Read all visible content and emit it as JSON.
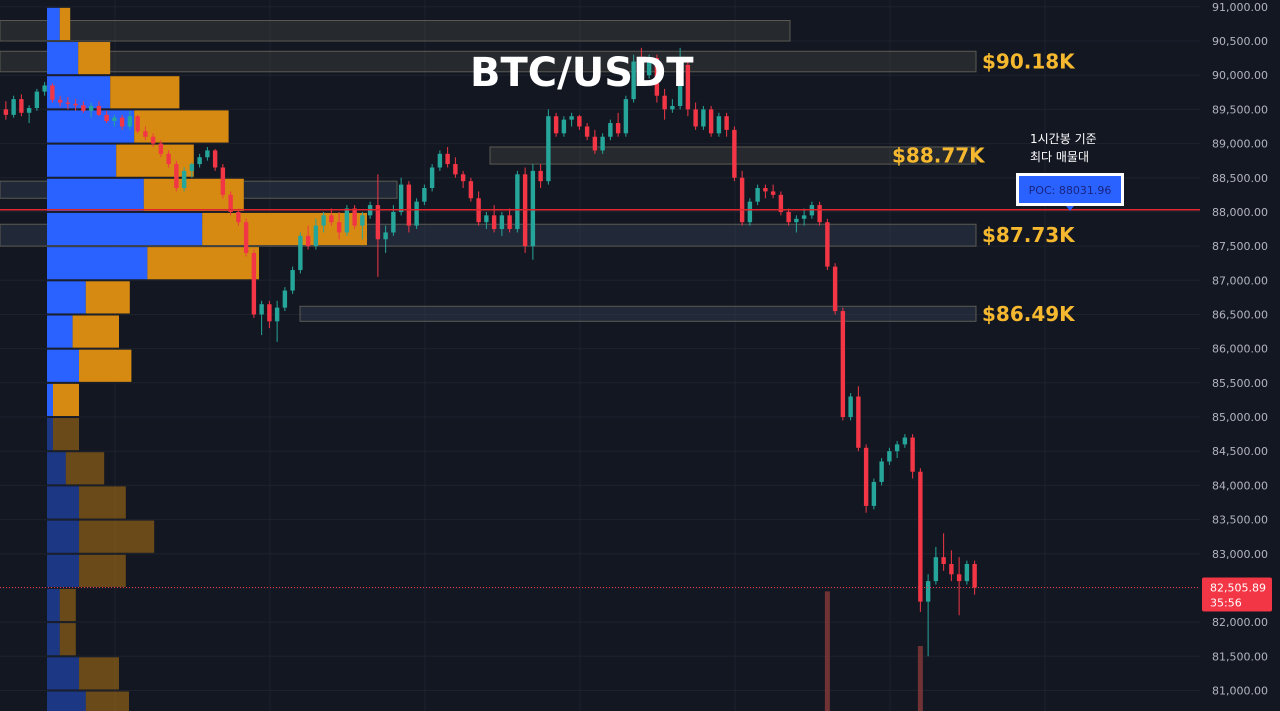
{
  "colors": {
    "background": "#131722",
    "grid": "#1e222d",
    "up": "#26a69a",
    "down": "#f23645",
    "vp_up": "#2962ff",
    "vp_down": "#d68a12",
    "zone_label": "#f5b82e",
    "poc_line": "#e0262e",
    "poc_box": "#2962ff",
    "price_tag": "#f23645"
  },
  "chart_data": {
    "type": "candlestick",
    "title": "BTC/USDT",
    "y_axis": {
      "min": 80700,
      "max": 91100,
      "ticks": [
        81000,
        81500,
        82000,
        82500,
        83000,
        83500,
        84000,
        84500,
        85000,
        85500,
        86000,
        86500,
        87000,
        87500,
        88000,
        88500,
        89000,
        89500,
        90000,
        90500,
        91000
      ],
      "tick_labels": [
        "81,000.00",
        "81,500.00",
        "82,000.00",
        "82,500.00",
        "83,000.00",
        "83,500.00",
        "84,000.00",
        "84,500.00",
        "85,000.00",
        "85,500.00",
        "86,000.00",
        "86,500.00",
        "87,000.00",
        "87,500.00",
        "88,000.00",
        "88,500.00",
        "89,000.00",
        "89,500.00",
        "90,000.00",
        "90,500.00",
        "91,000.00"
      ]
    },
    "grid": true,
    "candles": [
      [
        89500,
        89620,
        89350,
        89420
      ],
      [
        89420,
        89700,
        89380,
        89650
      ],
      [
        89650,
        89720,
        89400,
        89450
      ],
      [
        89450,
        89560,
        89300,
        89520
      ],
      [
        89520,
        89800,
        89480,
        89760
      ],
      [
        89760,
        89900,
        89700,
        89850
      ],
      [
        89850,
        89880,
        89600,
        89640
      ],
      [
        89640,
        89700,
        89540,
        89600
      ],
      [
        89600,
        89680,
        89500,
        89580
      ],
      [
        89580,
        89650,
        89480,
        89560
      ],
      [
        89560,
        89620,
        89450,
        89480
      ],
      [
        89480,
        89600,
        89380,
        89550
      ],
      [
        89550,
        89620,
        89400,
        89420
      ],
      [
        89420,
        89480,
        89300,
        89330
      ],
      [
        89330,
        89420,
        89250,
        89380
      ],
      [
        89380,
        89420,
        89200,
        89250
      ],
      [
        89250,
        89480,
        89200,
        89400
      ],
      [
        89400,
        89420,
        89150,
        89180
      ],
      [
        89180,
        89250,
        89050,
        89100
      ],
      [
        89100,
        89150,
        88950,
        89000
      ],
      [
        89000,
        89050,
        88800,
        88850
      ],
      [
        88850,
        88900,
        88650,
        88700
      ],
      [
        88700,
        88750,
        88300,
        88350
      ],
      [
        88350,
        88650,
        88300,
        88600
      ],
      [
        88600,
        88720,
        88500,
        88700
      ],
      [
        88700,
        88850,
        88650,
        88800
      ],
      [
        88800,
        88950,
        88750,
        88900
      ],
      [
        88900,
        88920,
        88600,
        88650
      ],
      [
        88650,
        88700,
        88200,
        88250
      ],
      [
        88250,
        88300,
        87950,
        88000
      ],
      [
        88000,
        88050,
        87800,
        87850
      ],
      [
        87850,
        87900,
        87350,
        87400
      ],
      [
        87400,
        87450,
        86450,
        86500
      ],
      [
        86500,
        86700,
        86200,
        86650
      ],
      [
        86650,
        86700,
        86300,
        86400
      ],
      [
        86400,
        86700,
        86100,
        86600
      ],
      [
        86600,
        86900,
        86550,
        86850
      ],
      [
        86850,
        87200,
        86800,
        87150
      ],
      [
        87150,
        87700,
        87100,
        87650
      ],
      [
        87650,
        87800,
        87450,
        87500
      ],
      [
        87500,
        87900,
        87450,
        87800
      ],
      [
        87800,
        88000,
        87700,
        87950
      ],
      [
        87950,
        88050,
        87800,
        87850
      ],
      [
        87850,
        88000,
        87600,
        87700
      ],
      [
        87700,
        88100,
        87650,
        88050
      ],
      [
        88050,
        88100,
        87750,
        87800
      ],
      [
        87800,
        88000,
        87600,
        87950
      ],
      [
        87950,
        88150,
        87900,
        88100
      ],
      [
        88100,
        88550,
        87050,
        87600
      ],
      [
        87600,
        87800,
        87400,
        87700
      ],
      [
        87700,
        88100,
        87650,
        88000
      ],
      [
        88000,
        88500,
        87950,
        88400
      ],
      [
        88400,
        88450,
        87700,
        87800
      ],
      [
        87800,
        88200,
        87750,
        88150
      ],
      [
        88150,
        88400,
        88100,
        88350
      ],
      [
        88350,
        88700,
        88300,
        88650
      ],
      [
        88650,
        88900,
        88600,
        88850
      ],
      [
        88850,
        88950,
        88650,
        88700
      ],
      [
        88700,
        88800,
        88500,
        88550
      ],
      [
        88550,
        88600,
        88350,
        88450
      ],
      [
        88450,
        88500,
        88150,
        88200
      ],
      [
        88200,
        88300,
        87800,
        87850
      ],
      [
        87850,
        88000,
        87750,
        87950
      ],
      [
        87950,
        88100,
        87700,
        87750
      ],
      [
        87750,
        88000,
        87650,
        87950
      ],
      [
        87950,
        88050,
        87700,
        87750
      ],
      [
        87750,
        88600,
        87700,
        88550
      ],
      [
        88550,
        88650,
        87400,
        87500
      ],
      [
        87500,
        88700,
        87300,
        88600
      ],
      [
        88600,
        88700,
        88350,
        88450
      ],
      [
        88450,
        89500,
        88400,
        89400
      ],
      [
        89400,
        89450,
        89100,
        89150
      ],
      [
        89150,
        89400,
        89100,
        89350
      ],
      [
        89350,
        89450,
        89250,
        89400
      ],
      [
        89400,
        89420,
        89200,
        89250
      ],
      [
        89250,
        89300,
        89050,
        89100
      ],
      [
        89100,
        89200,
        88850,
        88900
      ],
      [
        88900,
        89150,
        88850,
        89100
      ],
      [
        89100,
        89350,
        89050,
        89300
      ],
      [
        89300,
        89450,
        89100,
        89150
      ],
      [
        89150,
        89700,
        89100,
        89650
      ],
      [
        89650,
        90300,
        89600,
        90200
      ],
      [
        90200,
        90400,
        89950,
        90000
      ],
      [
        90000,
        90300,
        89950,
        90250
      ],
      [
        90250,
        90300,
        89600,
        89700
      ],
      [
        89700,
        89800,
        89350,
        89500
      ],
      [
        89500,
        89650,
        89450,
        89550
      ],
      [
        89550,
        90400,
        89500,
        90150
      ],
      [
        90150,
        90200,
        89400,
        89500
      ],
      [
        89500,
        89600,
        89200,
        89250
      ],
      [
        89250,
        89550,
        89200,
        89500
      ],
      [
        89500,
        89550,
        89100,
        89150
      ],
      [
        89150,
        89450,
        89100,
        89400
      ],
      [
        89400,
        89450,
        89100,
        89200
      ],
      [
        89200,
        89250,
        88450,
        88500
      ],
      [
        88500,
        88600,
        87800,
        87850
      ],
      [
        87850,
        88200,
        87800,
        88150
      ],
      [
        88150,
        88400,
        88100,
        88350
      ],
      [
        88350,
        88400,
        88200,
        88300
      ],
      [
        88300,
        88400,
        88200,
        88250
      ],
      [
        88250,
        88300,
        87950,
        88000
      ],
      [
        88000,
        88050,
        87800,
        87850
      ],
      [
        87850,
        87950,
        87700,
        87900
      ],
      [
        87900,
        88050,
        87800,
        87950
      ],
      [
        87950,
        88150,
        87900,
        88100
      ],
      [
        88100,
        88150,
        87800,
        87850
      ],
      [
        87850,
        87900,
        87150,
        87200
      ],
      [
        87200,
        87250,
        86500,
        86550
      ],
      [
        86550,
        86600,
        84950,
        85000
      ],
      [
        85000,
        85350,
        84950,
        85300
      ],
      [
        85300,
        85450,
        84500,
        84550
      ],
      [
        84550,
        84600,
        83600,
        83700
      ],
      [
        83700,
        84100,
        83650,
        84050
      ],
      [
        84050,
        84400,
        84000,
        84350
      ],
      [
        84350,
        84550,
        84300,
        84500
      ],
      [
        84500,
        84650,
        84400,
        84600
      ],
      [
        84600,
        84750,
        84550,
        84700
      ],
      [
        84700,
        84750,
        84100,
        84200
      ],
      [
        84200,
        84250,
        82150,
        82300
      ],
      [
        82300,
        82700,
        81500,
        82600
      ],
      [
        82600,
        83100,
        82550,
        82950
      ],
      [
        82950,
        83300,
        82750,
        82850
      ],
      [
        82850,
        83050,
        82600,
        82700
      ],
      [
        82700,
        82950,
        82100,
        82600
      ],
      [
        82600,
        82900,
        82550,
        82850
      ],
      [
        82850,
        82900,
        82400,
        82505.89
      ]
    ],
    "volume_profile": [
      {
        "price": 90750,
        "up": 3200,
        "down": 2600
      },
      {
        "price": 90250,
        "up": 7800,
        "down": 8000
      },
      {
        "price": 89750,
        "up": 15800,
        "down": 17300
      },
      {
        "price": 89250,
        "up": 21800,
        "down": 23600
      },
      {
        "price": 88750,
        "up": 17300,
        "down": 19400
      },
      {
        "price": 88250,
        "up": 24200,
        "down": 25000
      },
      {
        "price": 87750,
        "up": 38800,
        "down": 41200
      },
      {
        "price": 87250,
        "up": 25100,
        "down": 27900
      },
      {
        "price": 86750,
        "up": 9700,
        "down": 11000
      },
      {
        "price": 86250,
        "up": 6400,
        "down": 11600
      },
      {
        "price": 85750,
        "up": 8000,
        "down": 13100
      },
      {
        "price": 85250,
        "up": 1500,
        "down": 6500
      },
      {
        "price": 84750,
        "up": 1500,
        "down": 6500
      },
      {
        "price": 84250,
        "up": 4700,
        "down": 9600
      },
      {
        "price": 83750,
        "up": 8000,
        "down": 11700
      },
      {
        "price": 83250,
        "up": 8000,
        "down": 18800
      },
      {
        "price": 82750,
        "up": 8000,
        "down": 11700
      },
      {
        "price": 82250,
        "up": 3200,
        "down": 4000
      },
      {
        "price": 81750,
        "up": 3200,
        "down": 4000
      },
      {
        "price": 81250,
        "up": 8000,
        "down": 10000
      },
      {
        "price": 80750,
        "up": 9700,
        "down": 10800
      }
    ],
    "volume_profile_fade_below": 85000,
    "zones": [
      {
        "top": 90800,
        "bottom": 90500,
        "label": ""
      },
      {
        "top": 90350,
        "bottom": 90050,
        "label": "$90.18K"
      },
      {
        "top": 88950,
        "bottom": 88700,
        "label": "$88.77K"
      },
      {
        "top": 88450,
        "bottom": 88200,
        "label": ""
      },
      {
        "top": 87820,
        "bottom": 87500,
        "label": "$87.73K"
      },
      {
        "top": 86620,
        "bottom": 86400,
        "label": "$86.49K"
      }
    ],
    "poc": {
      "price": 88031.96,
      "label": "POC: 88031.96",
      "note_line1": "1시간봉 기준",
      "note_line2": "최다 매물대"
    },
    "last_price": {
      "value": "82,505.89",
      "timer": "35:56",
      "price": 82505.89
    },
    "volume_bars": [
      {
        "index": 106,
        "height_price": 80700,
        "top_price": 82450
      },
      {
        "index": 118,
        "height_price": 80700,
        "top_price": 81650
      }
    ]
  }
}
